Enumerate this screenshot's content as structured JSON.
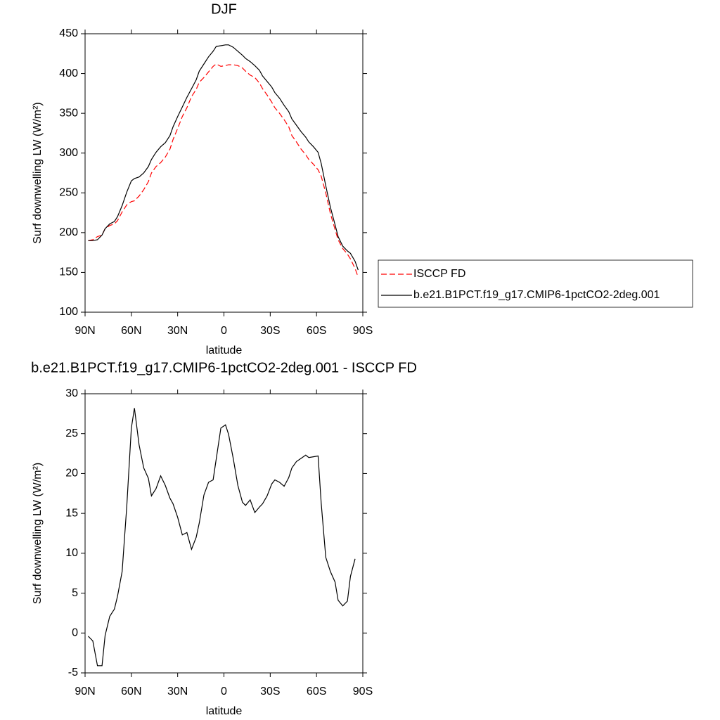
{
  "chart_data": [
    {
      "type": "line",
      "title": "DJF",
      "xlabel": "latitude",
      "ylabel": "Surf downwelling LW (W/m²)",
      "x": [
        88,
        85,
        82,
        79,
        77,
        74,
        71,
        69,
        66,
        63,
        60,
        58,
        55,
        52,
        49,
        47,
        44,
        41,
        38,
        35,
        33,
        30,
        27,
        24,
        21,
        18,
        16,
        13,
        10,
        7,
        5,
        2,
        -1,
        -3,
        -6,
        -9,
        -12,
        -14,
        -17,
        -20,
        -23,
        -25,
        -28,
        -31,
        -33,
        -36,
        -39,
        -42,
        -44,
        -47,
        -50,
        -53,
        -55,
        -58,
        -61,
        -63,
        -66,
        -69,
        -72,
        -74,
        -77,
        -80,
        -82,
        -85,
        -87
      ],
      "xlim": [
        90,
        -90
      ],
      "xticks": [
        {
          "value": 90,
          "label": "90N"
        },
        {
          "value": 60,
          "label": "60N"
        },
        {
          "value": 30,
          "label": "30N"
        },
        0,
        {
          "value": -30,
          "label": "30S"
        },
        {
          "value": -60,
          "label": "60S"
        },
        {
          "value": -90,
          "label": "90S"
        }
      ],
      "ylim": [
        100,
        450
      ],
      "yticks": [
        100,
        150,
        200,
        250,
        300,
        350,
        400,
        450
      ],
      "legend": "right",
      "series": [
        {
          "name": "ISCCP FD",
          "color": "#ff0000",
          "dashed": true,
          "values": [
            190,
            191,
            195,
            197,
            205,
            209,
            211,
            215,
            226,
            235,
            239,
            240,
            246,
            254,
            264,
            275,
            283,
            288,
            295,
            305,
            317,
            331,
            346,
            357,
            371,
            380,
            389,
            395,
            402,
            409,
            412,
            409,
            410,
            411,
            411,
            410,
            407,
            403,
            398,
            395,
            388,
            381,
            373,
            364,
            357,
            350,
            342,
            333,
            322,
            314,
            305,
            298,
            292,
            286,
            279,
            271,
            250,
            224,
            204,
            191,
            180,
            173,
            167,
            155,
            144
          ]
        },
        {
          "name": "b.e21.B1PCT.f19_g17.CMIP6-1pctCO2-2deg.001",
          "color": "#000000",
          "dashed": false,
          "values": [
            190,
            190,
            191,
            197,
            205,
            211,
            214,
            220,
            234,
            251,
            265,
            268,
            270,
            275,
            283,
            292,
            301,
            308,
            313,
            322,
            333,
            346,
            358,
            370,
            381,
            392,
            403,
            412,
            421,
            428,
            434,
            435,
            436,
            436,
            433,
            428,
            423,
            419,
            415,
            410,
            404,
            397,
            390,
            383,
            376,
            369,
            360,
            352,
            343,
            335,
            327,
            320,
            314,
            308,
            301,
            287,
            259,
            232,
            210,
            195,
            183,
            177,
            174,
            164,
            153
          ]
        }
      ]
    },
    {
      "type": "line",
      "title": "b.e21.B1PCT.f19_g17.CMIP6-1pctCO2-2deg.001 - ISCCP FD",
      "xlabel": "latitude",
      "ylabel": "Surf downwelling LW (W/m²)",
      "x": [
        88,
        85,
        82,
        79,
        77,
        74,
        71,
        69,
        66,
        63,
        60,
        58,
        55,
        52,
        49,
        47,
        44,
        41,
        38,
        35,
        33,
        30,
        27,
        24,
        21,
        18,
        16,
        13,
        10,
        7,
        5,
        2,
        -1,
        -3,
        -6,
        -9,
        -12,
        -14,
        -17,
        -20,
        -23,
        -25,
        -28,
        -31,
        -33,
        -36,
        -39,
        -42,
        -44,
        -47,
        -50,
        -53,
        -55,
        -58,
        -61,
        -63,
        -66,
        -69,
        -72,
        -74,
        -77,
        -80,
        -82,
        -85
      ],
      "xlim": [
        90,
        -90
      ],
      "xticks": [
        {
          "value": 90,
          "label": "90N"
        },
        {
          "value": 60,
          "label": "60N"
        },
        {
          "value": 30,
          "label": "30N"
        },
        0,
        {
          "value": -30,
          "label": "30S"
        },
        {
          "value": -60,
          "label": "60S"
        },
        {
          "value": -90,
          "label": "90S"
        }
      ],
      "ylim": [
        -5,
        30
      ],
      "yticks": [
        -5,
        0,
        5,
        10,
        15,
        20,
        25,
        30
      ],
      "series": [
        {
          "color": "#000000",
          "dashed": false,
          "values": [
            -0.4,
            -1,
            -4.1,
            -4.1,
            -0.3,
            2.1,
            3.0,
            4.6,
            7.7,
            15.9,
            25.7,
            28.2,
            23.6,
            20.7,
            19.4,
            17.2,
            18.1,
            19.7,
            18.5,
            16.9,
            16.2,
            14.5,
            12.3,
            12.6,
            10.5,
            12.0,
            13.8,
            17.3,
            18.9,
            19.2,
            21.8,
            25.7,
            26.1,
            24.9,
            21.9,
            18.5,
            16.4,
            16.0,
            16.7,
            15.1,
            15.8,
            16.2,
            17.2,
            18.7,
            19.2,
            18.9,
            18.4,
            19.5,
            20.7,
            21.5,
            21.9,
            22.3,
            22.0,
            22.1,
            22.2,
            16.3,
            9.5,
            7.7,
            6.4,
            4.1,
            3.4,
            4.0,
            7.1,
            9.3
          ]
        }
      ]
    }
  ]
}
